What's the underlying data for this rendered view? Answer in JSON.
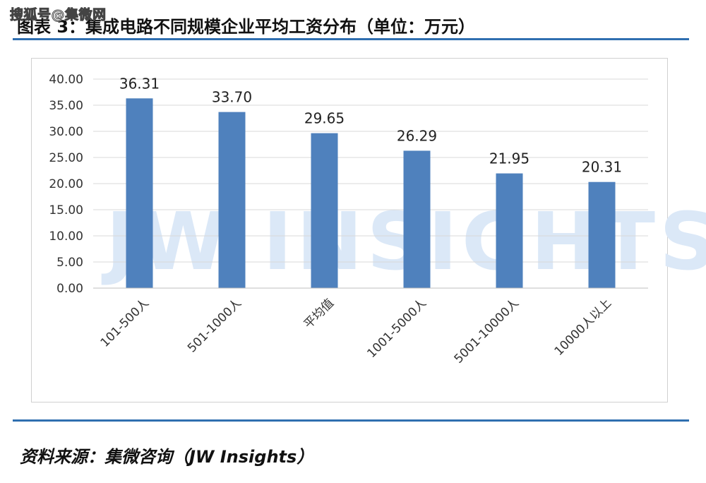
{
  "watermark_top": "搜狐号@集微网",
  "figure_title": "图表 3：集成电路不同规模企业平均工资分布（单位：万元）",
  "watermark_text": "JW INSIGHTS",
  "source": "资料来源：集微咨询（JW Insights）",
  "colors": {
    "bar": "#4f81bd",
    "rule": "#2f6fb0",
    "grid": "#d9d9d9"
  },
  "chart_data": {
    "type": "bar",
    "categories": [
      "101-500人",
      "501-1000人",
      "平均值",
      "1001-5000人",
      "5001-10000人",
      "10000人以上"
    ],
    "values": [
      36.31,
      33.7,
      29.65,
      26.29,
      21.95,
      20.31
    ],
    "data_labels": [
      "36.31",
      "33.70",
      "29.65",
      "26.29",
      "21.95",
      "20.31"
    ],
    "yticks": [
      "0.00",
      "5.00",
      "10.00",
      "15.00",
      "20.00",
      "25.00",
      "30.00",
      "35.00",
      "40.00"
    ],
    "ylim": [
      0,
      40
    ],
    "grid": true,
    "legend": false
  }
}
